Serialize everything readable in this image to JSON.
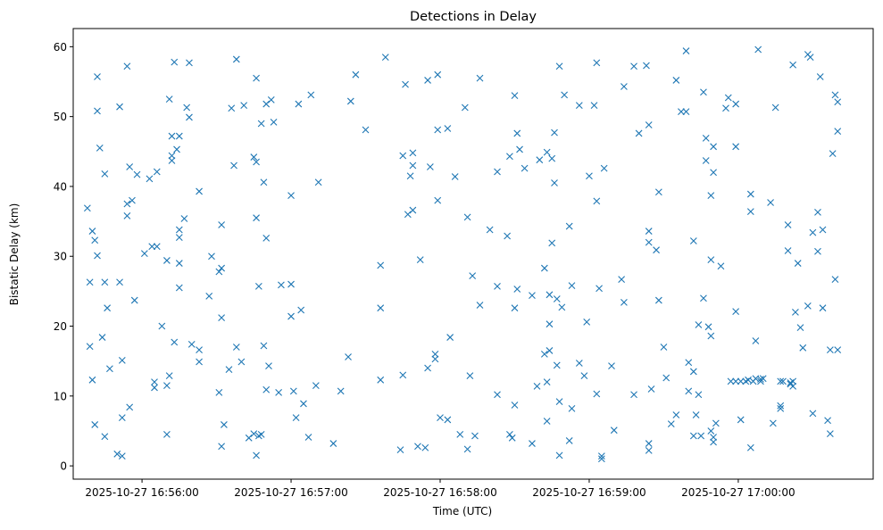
{
  "chart_data": {
    "type": "scatter",
    "title": "Detections in Delay",
    "xlabel": "Time (UTC)",
    "ylabel": "Bistatic Delay (km)",
    "x_unit": "seconds after 2025-10-27 16:56:00 UTC",
    "xlim": [
      -27.7,
      294.3
    ],
    "ylim": [
      -1.9,
      62.6
    ],
    "grid": false,
    "marker": "x",
    "color": "#1f77b4",
    "xticks": [
      {
        "value": 0,
        "label": "2025-10-27 16:56:00"
      },
      {
        "value": 60,
        "label": "2025-10-27 16:57:00"
      },
      {
        "value": 120,
        "label": "2025-10-27 16:58:00"
      },
      {
        "value": 180,
        "label": "2025-10-27 16:59:00"
      },
      {
        "value": 240,
        "label": "2025-10-27 17:00:00"
      }
    ],
    "yticks": [
      {
        "value": 0,
        "label": "0"
      },
      {
        "value": 10,
        "label": "10"
      },
      {
        "value": 20,
        "label": "20"
      },
      {
        "value": 30,
        "label": "30"
      },
      {
        "value": 40,
        "label": "40"
      },
      {
        "value": 50,
        "label": "50"
      },
      {
        "value": 60,
        "label": "60"
      }
    ],
    "points": [
      [
        -22,
        36.9
      ],
      [
        -21,
        26.3
      ],
      [
        -21,
        17.1
      ],
      [
        -20,
        33.6
      ],
      [
        -19,
        32.3
      ],
      [
        -18,
        30.1
      ],
      [
        -20,
        12.3
      ],
      [
        -19,
        5.9
      ],
      [
        -18,
        55.7
      ],
      [
        -18,
        50.8
      ],
      [
        -17,
        45.5
      ],
      [
        -16,
        18.4
      ],
      [
        -15,
        41.8
      ],
      [
        -15,
        26.3
      ],
      [
        -15,
        4.2
      ],
      [
        -14,
        22.6
      ],
      [
        -13,
        13.9
      ],
      [
        -10,
        1.7
      ],
      [
        -9,
        26.3
      ],
      [
        -9,
        51.4
      ],
      [
        -8,
        1.4
      ],
      [
        -8,
        6.9
      ],
      [
        -8,
        15.1
      ],
      [
        -6,
        35.8
      ],
      [
        -6,
        57.2
      ],
      [
        -6,
        37.5
      ],
      [
        -5,
        42.8
      ],
      [
        -5,
        8.4
      ],
      [
        -4,
        38
      ],
      [
        -3,
        23.7
      ],
      [
        -2,
        41.7
      ],
      [
        1,
        30.4
      ],
      [
        3,
        41.1
      ],
      [
        4,
        31.4
      ],
      [
        5,
        12
      ],
      [
        5,
        11.2
      ],
      [
        6,
        31.4
      ],
      [
        6,
        42.1
      ],
      [
        8,
        20
      ],
      [
        10,
        29.4
      ],
      [
        10,
        11.5
      ],
      [
        11,
        12.9
      ],
      [
        10,
        4.5
      ],
      [
        11,
        52.5
      ],
      [
        12,
        44.4
      ],
      [
        12,
        47.2
      ],
      [
        12,
        43.7
      ],
      [
        13,
        17.7
      ],
      [
        13,
        57.8
      ],
      [
        14,
        45.3
      ],
      [
        15,
        47.2
      ],
      [
        15,
        29
      ],
      [
        15,
        32.7
      ],
      [
        15,
        25.5
      ],
      [
        15,
        33.8
      ],
      [
        17,
        35.4
      ],
      [
        18,
        51.3
      ],
      [
        19,
        49.9
      ],
      [
        19,
        57.7
      ],
      [
        20,
        17.4
      ],
      [
        23,
        16.6
      ],
      [
        23,
        39.3
      ],
      [
        23,
        14.9
      ],
      [
        27,
        24.3
      ],
      [
        28,
        30
      ],
      [
        31,
        27.8
      ],
      [
        31,
        10.5
      ],
      [
        32,
        34.5
      ],
      [
        32,
        21.2
      ],
      [
        32,
        2.8
      ],
      [
        32,
        28.3
      ],
      [
        33,
        5.9
      ],
      [
        35,
        13.8
      ],
      [
        36,
        51.2
      ],
      [
        37,
        43
      ],
      [
        38,
        58.2
      ],
      [
        38,
        17
      ],
      [
        40,
        14.9
      ],
      [
        41,
        51.6
      ],
      [
        43,
        4
      ],
      [
        45,
        4.6
      ],
      [
        45,
        44.2
      ],
      [
        46,
        35.5
      ],
      [
        46,
        55.5
      ],
      [
        46,
        43.5
      ],
      [
        46,
        1.5
      ],
      [
        47,
        4.3
      ],
      [
        47,
        25.7
      ],
      [
        48,
        49
      ],
      [
        48,
        4.5
      ],
      [
        49,
        17.2
      ],
      [
        49,
        40.6
      ],
      [
        50,
        51.8
      ],
      [
        50,
        32.6
      ],
      [
        50,
        10.9
      ],
      [
        51,
        14.3
      ],
      [
        52,
        52.4
      ],
      [
        53,
        49.2
      ],
      [
        55,
        10.5
      ],
      [
        56,
        25.9
      ],
      [
        60,
        38.7
      ],
      [
        60,
        26
      ],
      [
        60,
        21.4
      ],
      [
        61,
        10.7
      ],
      [
        62,
        6.9
      ],
      [
        63,
        51.8
      ],
      [
        64,
        22.3
      ],
      [
        65,
        8.9
      ],
      [
        67,
        4.1
      ],
      [
        68,
        53.1
      ],
      [
        70,
        11.5
      ],
      [
        71,
        40.6
      ],
      [
        77,
        3.2
      ],
      [
        80,
        10.7
      ],
      [
        83,
        15.6
      ],
      [
        84,
        52.2
      ],
      [
        86,
        56
      ],
      [
        90,
        48.1
      ],
      [
        96,
        28.7
      ],
      [
        96,
        12.3
      ],
      [
        96,
        22.6
      ],
      [
        98,
        58.5
      ],
      [
        104,
        2.3
      ],
      [
        105,
        13
      ],
      [
        105,
        44.4
      ],
      [
        106,
        54.6
      ],
      [
        107,
        36
      ],
      [
        108,
        41.5
      ],
      [
        109,
        44.8
      ],
      [
        109,
        36.6
      ],
      [
        109,
        43
      ],
      [
        111,
        2.8
      ],
      [
        112,
        29.5
      ],
      [
        114,
        2.6
      ],
      [
        115,
        55.2
      ],
      [
        115,
        14
      ],
      [
        116,
        42.8
      ],
      [
        118,
        16
      ],
      [
        118,
        15.3
      ],
      [
        119,
        48.1
      ],
      [
        119,
        56
      ],
      [
        119,
        38
      ],
      [
        120,
        6.9
      ],
      [
        123,
        48.3
      ],
      [
        123,
        6.6
      ],
      [
        124,
        18.4
      ],
      [
        126,
        41.4
      ],
      [
        128,
        4.5
      ],
      [
        130,
        51.3
      ],
      [
        131,
        2.4
      ],
      [
        131,
        35.6
      ],
      [
        132,
        12.9
      ],
      [
        133,
        27.2
      ],
      [
        134,
        4.3
      ],
      [
        136,
        23
      ],
      [
        136,
        55.5
      ],
      [
        140,
        33.8
      ],
      [
        143,
        10.2
      ],
      [
        143,
        42.1
      ],
      [
        143,
        25.7
      ],
      [
        147,
        32.9
      ],
      [
        148,
        44.3
      ],
      [
        148,
        4.5
      ],
      [
        149,
        4
      ],
      [
        150,
        53
      ],
      [
        150,
        8.7
      ],
      [
        150,
        22.6
      ],
      [
        151,
        25.3
      ],
      [
        151,
        47.6
      ],
      [
        152,
        45.3
      ],
      [
        154,
        42.6
      ],
      [
        157,
        24.4
      ],
      [
        157,
        3.2
      ],
      [
        159,
        11.4
      ],
      [
        160,
        43.8
      ],
      [
        162,
        28.3
      ],
      [
        162,
        16
      ],
      [
        163,
        6.4
      ],
      [
        163,
        44.9
      ],
      [
        163,
        12
      ],
      [
        164,
        16.5
      ],
      [
        164,
        20.3
      ],
      [
        164,
        24.5
      ],
      [
        165,
        31.9
      ],
      [
        165,
        44
      ],
      [
        166,
        47.7
      ],
      [
        166,
        40.5
      ],
      [
        167,
        14.4
      ],
      [
        168,
        57.2
      ],
      [
        167,
        23.9
      ],
      [
        168,
        1.5
      ],
      [
        168,
        9.2
      ],
      [
        169,
        22.7
      ],
      [
        170,
        53.1
      ],
      [
        172,
        34.3
      ],
      [
        172,
        3.6
      ],
      [
        173,
        25.8
      ],
      [
        173,
        8.2
      ],
      [
        176,
        51.6
      ],
      [
        176,
        14.7
      ],
      [
        178,
        12.9
      ],
      [
        179,
        20.6
      ],
      [
        180,
        41.5
      ],
      [
        182,
        51.6
      ],
      [
        183,
        37.9
      ],
      [
        183,
        57.7
      ],
      [
        183,
        10.3
      ],
      [
        184,
        25.4
      ],
      [
        185,
        1.4
      ],
      [
        185,
        1
      ],
      [
        186,
        42.6
      ],
      [
        189,
        14.3
      ],
      [
        190,
        5.1
      ],
      [
        193,
        26.7
      ],
      [
        194,
        23.4
      ],
      [
        194,
        54.3
      ],
      [
        198,
        57.2
      ],
      [
        198,
        10.2
      ],
      [
        200,
        47.6
      ],
      [
        203,
        57.3
      ],
      [
        204,
        48.8
      ],
      [
        204,
        3.2
      ],
      [
        204,
        2.2
      ],
      [
        204,
        33.6
      ],
      [
        204,
        32.0
      ],
      [
        205,
        11
      ],
      [
        207,
        30.9
      ],
      [
        208,
        23.7
      ],
      [
        208,
        39.2
      ],
      [
        210,
        17
      ],
      [
        211,
        12.6
      ],
      [
        213,
        6
      ],
      [
        215,
        7.3
      ],
      [
        215,
        55.2
      ],
      [
        217,
        50.7
      ],
      [
        219,
        59.4
      ],
      [
        219,
        50.7
      ],
      [
        220,
        14.8
      ],
      [
        220,
        10.7
      ],
      [
        222,
        4.3
      ],
      [
        222,
        13.5
      ],
      [
        222,
        32.2
      ],
      [
        223,
        7.3
      ],
      [
        224,
        10.2
      ],
      [
        224,
        20.2
      ],
      [
        225,
        4.3
      ],
      [
        226,
        53.5
      ],
      [
        226,
        24
      ],
      [
        227,
        43.7
      ],
      [
        227,
        46.9
      ],
      [
        228,
        19.9
      ],
      [
        229,
        18.6
      ],
      [
        229,
        5
      ],
      [
        229,
        29.5
      ],
      [
        229,
        38.7
      ],
      [
        230,
        45.7
      ],
      [
        230,
        42
      ],
      [
        230,
        4.1
      ],
      [
        230,
        3.4
      ],
      [
        231,
        6.1
      ],
      [
        233,
        28.6
      ],
      [
        235,
        51.2
      ],
      [
        236,
        52.7
      ],
      [
        237,
        12.1
      ],
      [
        239,
        12.1
      ],
      [
        239,
        51.8
      ],
      [
        239,
        45.7
      ],
      [
        239,
        22.1
      ],
      [
        241,
        12.1
      ],
      [
        241,
        6.6
      ],
      [
        243,
        12.1
      ],
      [
        244,
        12.3
      ],
      [
        245,
        38.9
      ],
      [
        245,
        36.4
      ],
      [
        245,
        2.6
      ],
      [
        246,
        12.1
      ],
      [
        247,
        17.9
      ],
      [
        247,
        12.5
      ],
      [
        248,
        59.6
      ],
      [
        249,
        12.4
      ],
      [
        249,
        12.1
      ],
      [
        250,
        12.5
      ],
      [
        253,
        37.7
      ],
      [
        254,
        6.1
      ],
      [
        255,
        51.3
      ],
      [
        257,
        8.6
      ],
      [
        257,
        8.2
      ],
      [
        257,
        12.1
      ],
      [
        258,
        12.1
      ],
      [
        260,
        34.5
      ],
      [
        260,
        30.8
      ],
      [
        261,
        11.9
      ],
      [
        261,
        11.7
      ],
      [
        262,
        12.1
      ],
      [
        262,
        57.4
      ],
      [
        262,
        11.4
      ],
      [
        263,
        22
      ],
      [
        264,
        29
      ],
      [
        265,
        19.8
      ],
      [
        266,
        16.9
      ],
      [
        268,
        58.9
      ],
      [
        268,
        22.9
      ],
      [
        269,
        58.5
      ],
      [
        270,
        7.5
      ],
      [
        270,
        33.4
      ],
      [
        272,
        36.3
      ],
      [
        272,
        30.7
      ],
      [
        273,
        55.7
      ],
      [
        274,
        22.6
      ],
      [
        274,
        33.8
      ],
      [
        276,
        6.5
      ],
      [
        277,
        16.6
      ],
      [
        277,
        4.6
      ],
      [
        278,
        44.7
      ],
      [
        279,
        53.1
      ],
      [
        279,
        26.7
      ],
      [
        280,
        52.1
      ],
      [
        280,
        16.6
      ],
      [
        280,
        47.9
      ]
    ]
  }
}
